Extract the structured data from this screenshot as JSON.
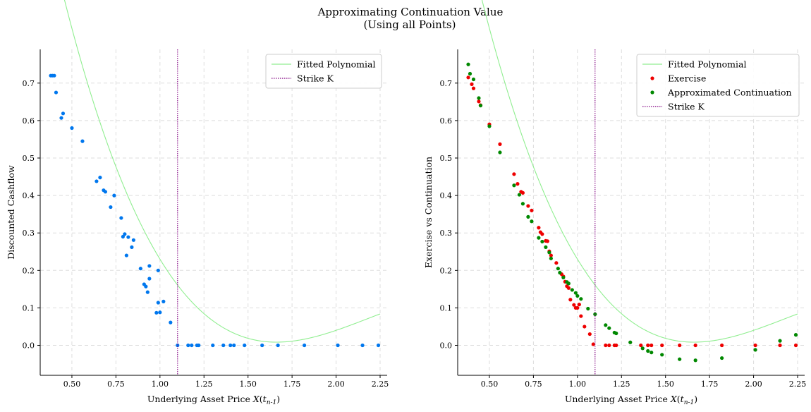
{
  "title_line1": "Approximating Continuation Value",
  "title_line2": "(Using all Points)",
  "chart_data": [
    {
      "type": "scatter",
      "xlabel": "Underlying Asset Price X(t_{n-1})",
      "ylabel": "Discounted Cashflow",
      "xlim": [
        0.32,
        2.29
      ],
      "ylim": [
        -0.08,
        0.79
      ],
      "xticks": [
        "0.50",
        "0.75",
        "1.00",
        "1.25",
        "1.50",
        "1.75",
        "2.00",
        "2.25"
      ],
      "yticks": [
        "0.0",
        "0.1",
        "0.2",
        "0.3",
        "0.4",
        "0.5",
        "0.6",
        "0.7"
      ],
      "grid": true,
      "legend_position": "top-right",
      "strike": 1.1,
      "poly_coefficients": [
        2.04,
        -3.08,
        1.5,
        -0.23
      ],
      "poly_range": [
        0.38,
        2.25
      ],
      "series": [
        {
          "name": "Fitted Polynomial",
          "kind": "line",
          "color": "#90ee90"
        },
        {
          "name": "Strike K",
          "kind": "vline",
          "color": "#800080"
        },
        {
          "name": "Discounted Cashflow",
          "kind": "points",
          "color": "#0077ee",
          "in_legend": false,
          "x": [
            0.38,
            0.39,
            0.4,
            0.41,
            0.44,
            0.45,
            0.5,
            0.56,
            0.64,
            0.66,
            0.68,
            0.69,
            0.72,
            0.74,
            0.78,
            0.79,
            0.8,
            0.81,
            0.82,
            0.84,
            0.85,
            0.89,
            0.91,
            0.92,
            0.93,
            0.94,
            0.94,
            0.98,
            0.99,
            0.99,
            1.0,
            1.02,
            1.06,
            1.1,
            1.16,
            1.18,
            1.21,
            1.22,
            1.3,
            1.36,
            1.4,
            1.42,
            1.48,
            1.58,
            1.67,
            1.82,
            2.01,
            2.15,
            2.24
          ],
          "y": [
            0.72,
            0.72,
            0.72,
            0.675,
            0.607,
            0.619,
            0.58,
            0.545,
            0.438,
            0.448,
            0.414,
            0.41,
            0.369,
            0.4,
            0.34,
            0.29,
            0.297,
            0.24,
            0.289,
            0.262,
            0.281,
            0.205,
            0.163,
            0.157,
            0.142,
            0.178,
            0.212,
            0.087,
            0.2,
            0.114,
            0.088,
            0.117,
            0.061,
            0.0,
            0.0,
            0.0,
            0.0,
            0.0,
            0.0,
            0.0,
            0.0,
            0.0,
            0.0,
            0.0,
            0.0,
            0.0,
            0.0,
            0.0,
            0.0
          ]
        }
      ]
    },
    {
      "type": "scatter",
      "xlabel": "Underlying Asset Price X(t_{n-1})",
      "ylabel": "Exercise vs Continuation",
      "xlim": [
        0.32,
        2.29
      ],
      "ylim": [
        -0.08,
        0.79
      ],
      "xticks": [
        "0.50",
        "0.75",
        "1.00",
        "1.25",
        "1.50",
        "1.75",
        "2.00",
        "2.25"
      ],
      "yticks": [
        "0.0",
        "0.1",
        "0.2",
        "0.3",
        "0.4",
        "0.5",
        "0.6",
        "0.7"
      ],
      "grid": true,
      "legend_position": "top-right",
      "strike": 1.1,
      "poly_coefficients": [
        2.04,
        -3.08,
        1.5,
        -0.23
      ],
      "poly_range": [
        0.38,
        2.25
      ],
      "series": [
        {
          "name": "Fitted Polynomial",
          "kind": "line",
          "color": "#90ee90"
        },
        {
          "name": "Exercise",
          "kind": "points",
          "color": "#ee0000",
          "x": [
            0.38,
            0.4,
            0.41,
            0.44,
            0.45,
            0.5,
            0.56,
            0.64,
            0.66,
            0.68,
            0.69,
            0.72,
            0.74,
            0.78,
            0.79,
            0.8,
            0.82,
            0.83,
            0.84,
            0.85,
            0.88,
            0.91,
            0.92,
            0.93,
            0.94,
            0.95,
            0.96,
            0.98,
            0.99,
            1.0,
            1.01,
            1.02,
            1.04,
            1.07,
            1.09,
            1.16,
            1.18,
            1.21,
            1.22,
            1.36,
            1.4,
            1.42,
            1.48,
            1.58,
            1.67,
            1.82,
            2.01,
            2.15,
            2.24
          ],
          "y": [
            0.715,
            0.697,
            0.686,
            0.651,
            0.641,
            0.59,
            0.537,
            0.457,
            0.431,
            0.41,
            0.407,
            0.372,
            0.36,
            0.314,
            0.302,
            0.297,
            0.279,
            0.278,
            0.251,
            0.24,
            0.22,
            0.19,
            0.184,
            0.17,
            0.158,
            0.153,
            0.122,
            0.108,
            0.1,
            0.1,
            0.109,
            0.078,
            0.05,
            0.03,
            0.003,
            0.0,
            0.0,
            0.0,
            0.0,
            0.0,
            0.0,
            0.0,
            0.0,
            0.0,
            0.0,
            0.0,
            0.0,
            0.0,
            0.0
          ]
        },
        {
          "name": "Approximated Continuation",
          "kind": "points",
          "color": "#008800",
          "x": [
            0.38,
            0.39,
            0.41,
            0.44,
            0.45,
            0.5,
            0.56,
            0.64,
            0.67,
            0.69,
            0.72,
            0.74,
            0.78,
            0.8,
            0.82,
            0.84,
            0.85,
            0.89,
            0.9,
            0.92,
            0.94,
            0.95,
            0.97,
            0.99,
            1.0,
            1.02,
            1.06,
            1.1,
            1.16,
            1.18,
            1.21,
            1.22,
            1.3,
            1.37,
            1.4,
            1.42,
            1.48,
            1.58,
            1.67,
            1.82,
            2.01,
            2.15,
            2.24
          ],
          "y": [
            0.75,
            0.725,
            0.71,
            0.66,
            0.64,
            0.585,
            0.515,
            0.427,
            0.402,
            0.378,
            0.343,
            0.331,
            0.287,
            0.277,
            0.262,
            0.248,
            0.232,
            0.205,
            0.194,
            0.181,
            0.169,
            0.165,
            0.148,
            0.14,
            0.132,
            0.124,
            0.098,
            0.083,
            0.054,
            0.046,
            0.034,
            0.032,
            0.008,
            -0.008,
            -0.015,
            -0.019,
            -0.025,
            -0.037,
            -0.04,
            -0.034,
            -0.012,
            0.012,
            0.028
          ]
        },
        {
          "name": "Strike K",
          "kind": "vline",
          "color": "#800080"
        }
      ]
    }
  ]
}
